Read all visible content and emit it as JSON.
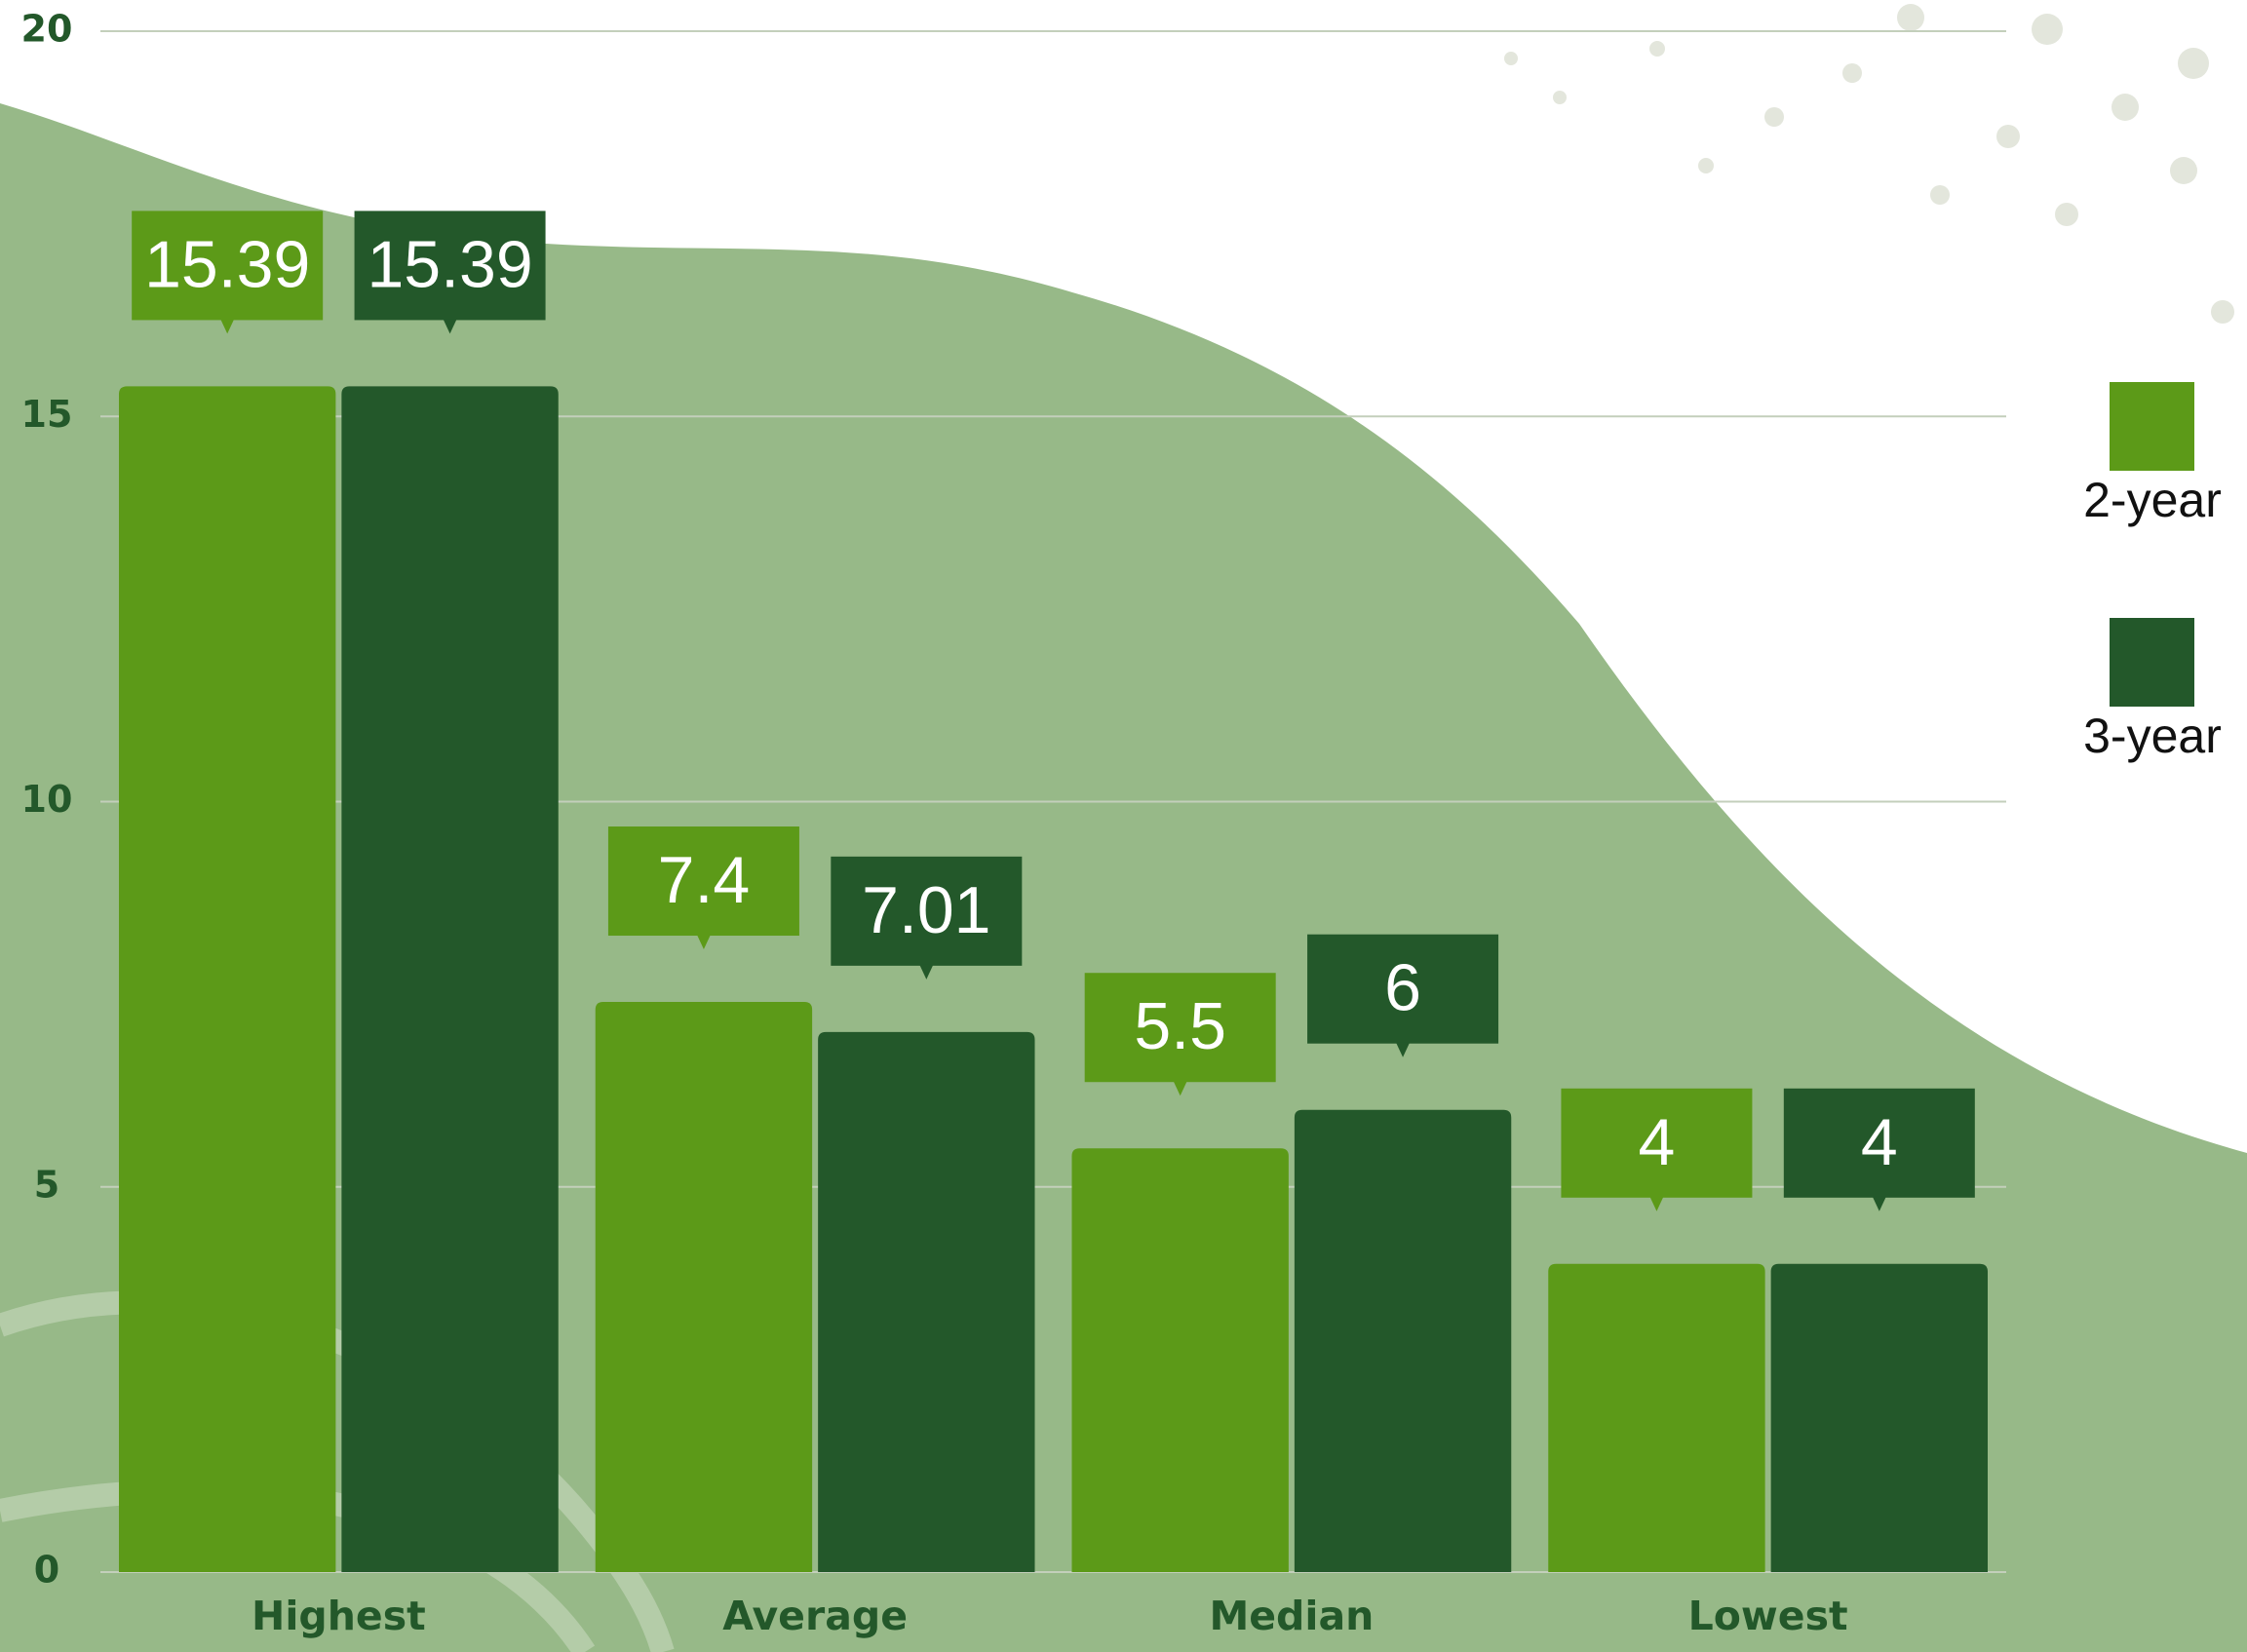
{
  "chart_data": {
    "type": "bar",
    "categories": [
      "Highest",
      "Average",
      "Median",
      "Lowest"
    ],
    "series": [
      {
        "name": "2-year",
        "color": "#5c9a18",
        "values": [
          15.39,
          7.4,
          5.5,
          4
        ]
      },
      {
        "name": "3-year",
        "color": "#23582a",
        "values": [
          15.39,
          7.01,
          6,
          4
        ]
      }
    ],
    "ylim": [
      0,
      20
    ],
    "yticks": [
      0,
      5,
      10,
      15,
      20
    ],
    "grid": true,
    "legend": "right"
  }
}
